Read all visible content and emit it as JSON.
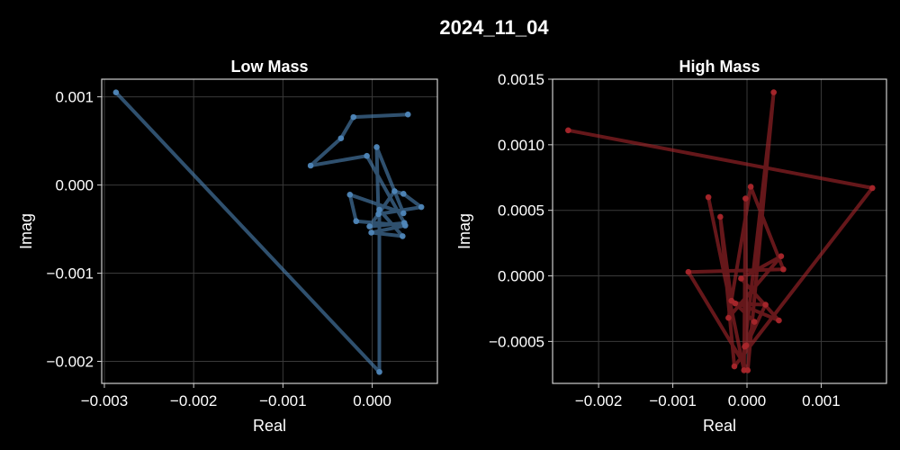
{
  "suptitle": "2024_11_04",
  "chart_data": [
    {
      "type": "line",
      "title": "Low Mass",
      "xlabel": "Real",
      "ylabel": "Imag",
      "xlim": [
        -0.00303,
        0.00073
      ],
      "ylim": [
        -0.00225,
        0.0012
      ],
      "xticks": [
        -0.003,
        -0.002,
        -0.001,
        0.0
      ],
      "xtick_labels": [
        "−0.003",
        "−0.002",
        "−0.001",
        "0.000"
      ],
      "yticks": [
        -0.002,
        -0.001,
        0.0,
        0.001
      ],
      "ytick_labels": [
        "−0.002",
        "−0.001",
        "0.000",
        "0.001"
      ],
      "grid": true,
      "color": "#4f86b8",
      "points": [
        [
          -0.00287,
          0.00105
        ],
        [
          8e-05,
          -0.00212
        ],
        [
          8e-05,
          -0.00028
        ],
        [
          0.00034,
          -0.00058
        ],
        [
          -1e-05,
          -0.00054
        ],
        [
          0.00037,
          -0.00046
        ],
        [
          -0.00018,
          -0.00041
        ],
        [
          -0.00025,
          -0.00011
        ],
        [
          0.00035,
          -0.00032
        ],
        [
          5e-05,
          0.00043
        ],
        [
          7e-05,
          -0.00033
        ],
        [
          0.00055,
          -0.00025
        ],
        [
          0.00035,
          -0.0001
        ],
        [
          0.00025,
          -7e-05
        ],
        [
          -3e-05,
          -0.00047
        ],
        [
          0.00036,
          -0.00043
        ],
        [
          -6e-05,
          0.00033
        ],
        [
          -0.00069,
          0.00022
        ],
        [
          -0.00035,
          0.00053
        ],
        [
          -0.00021,
          0.00077
        ],
        [
          0.0004,
          0.0008
        ]
      ]
    },
    {
      "type": "line",
      "title": "High Mass",
      "xlabel": "Real",
      "ylabel": "Imag",
      "xlim": [
        -0.00262,
        0.00188
      ],
      "ylim": [
        -0.00082,
        0.0015
      ],
      "xticks": [
        -0.002,
        -0.001,
        0.0,
        0.001
      ],
      "xtick_labels": [
        "−0.002",
        "−0.001",
        "0.000",
        "0.001"
      ],
      "yticks": [
        -0.0005,
        0.0,
        0.0005,
        0.001,
        0.0015
      ],
      "ytick_labels": [
        "−0.0005",
        "0.0000",
        "0.0005",
        "0.0010",
        "0.0015"
      ],
      "grid": true,
      "color": "#a8262b",
      "points": [
        [
          -0.00241,
          0.00111
        ],
        [
          0.00169,
          0.00067
        ],
        [
          -0.00017,
          -0.00069
        ],
        [
          -0.00036,
          0.00045
        ],
        [
          -0.00021,
          -0.00019
        ],
        [
          0.00043,
          -0.00034
        ],
        [
          -8e-05,
          -2e-05
        ],
        [
          0.00046,
          0.00015
        ],
        [
          -0.00025,
          -0.00032
        ],
        [
          5e-05,
          0.00068
        ],
        [
          0.00049,
          5e-05
        ],
        [
          -0.00079,
          3e-05
        ],
        [
          1e-05,
          -0.00072
        ],
        [
          0.00036,
          0.0014
        ],
        [
          -3e-05,
          -0.00054
        ],
        [
          0.0001,
          -0.00035
        ],
        [
          -0.00016,
          -0.00021
        ],
        [
          0.00025,
          -0.00022
        ],
        [
          -1e-05,
          -0.00053
        ],
        [
          -2e-05,
          0.00059
        ],
        [
          -4e-05,
          -0.00072
        ],
        [
          -0.00052,
          0.0006
        ]
      ]
    }
  ]
}
